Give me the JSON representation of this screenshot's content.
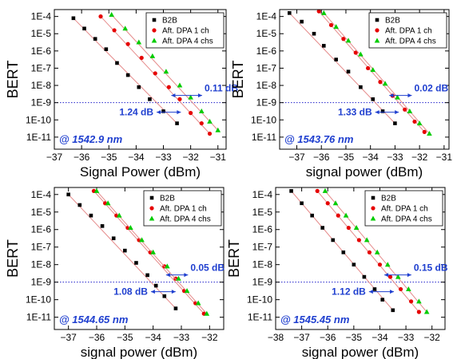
{
  "chart_data": [
    {
      "type": "scatter",
      "ylabel": "BERT",
      "xlabel": "Signal Power (dBm)",
      "wavelength_label": "@ 1542.9 nm",
      "xlim": [
        -37,
        -30.7
      ],
      "xticks": [
        -37,
        -36,
        -35,
        -34,
        -33,
        -32,
        -31
      ],
      "ylim_log10": [
        -11.7,
        -3.6
      ],
      "yticks": [
        "1E-4",
        "1E-5",
        "1E-6",
        "1E-7",
        "1E-8",
        "1E-9",
        "1E-10",
        "1E-11"
      ],
      "reference_level": "1E-9",
      "legend": [
        "B2B",
        "Aft. DPA 1 ch",
        "Aft. DPA 4 chs"
      ],
      "legend_position": "top-right",
      "annotations": [
        {
          "text": "0.11 dB",
          "between": [
            1,
            2
          ]
        },
        {
          "text": "1.24 dB",
          "between": [
            0,
            1
          ]
        }
      ],
      "series": [
        {
          "name": "B2B",
          "marker": "square",
          "color": "#000000",
          "points": [
            [
              -36.3,
              -4.1
            ],
            [
              -35.9,
              -4.7
            ],
            [
              -35.5,
              -5.3
            ],
            [
              -35.1,
              -5.9
            ],
            [
              -34.7,
              -6.7
            ],
            [
              -34.3,
              -7.4
            ],
            [
              -33.9,
              -8.1
            ],
            [
              -33.5,
              -8.8
            ],
            [
              -33.0,
              -9.5
            ],
            [
              -32.5,
              -10.2
            ]
          ],
          "fit": [
            [
              -36.3,
              -4.1
            ],
            [
              -32.5,
              -10.2
            ]
          ]
        },
        {
          "name": "Aft. DPA 1 ch",
          "marker": "circle",
          "color": "#e60000",
          "points": [
            [
              -35.3,
              -4.0
            ],
            [
              -34.8,
              -4.8
            ],
            [
              -34.3,
              -5.6
            ],
            [
              -33.8,
              -6.4
            ],
            [
              -33.3,
              -7.3
            ],
            [
              -32.8,
              -8.1
            ],
            [
              -32.4,
              -8.8
            ],
            [
              -32.0,
              -9.6
            ],
            [
              -31.6,
              -10.2
            ],
            [
              -31.3,
              -10.8
            ]
          ],
          "fit": [
            [
              -35.3,
              -4.0
            ],
            [
              -31.3,
              -10.8
            ]
          ]
        },
        {
          "name": "Aft. DPA 4 chs",
          "marker": "triangle",
          "color": "#00cc00",
          "points": [
            [
              -34.9,
              -3.9
            ],
            [
              -34.4,
              -4.7
            ],
            [
              -33.9,
              -5.5
            ],
            [
              -33.4,
              -6.3
            ],
            [
              -32.9,
              -7.2
            ],
            [
              -32.4,
              -8.0
            ],
            [
              -32.0,
              -8.7
            ],
            [
              -31.6,
              -9.5
            ],
            [
              -31.3,
              -10.1
            ],
            [
              -31.0,
              -10.6
            ]
          ],
          "fit": [
            [
              -34.9,
              -3.9
            ],
            [
              -31.0,
              -10.6
            ]
          ]
        }
      ]
    },
    {
      "type": "scatter",
      "ylabel": "BERT",
      "xlabel": "signal power (dBm)",
      "wavelength_label": "@ 1543.76 nm",
      "xlim": [
        -37.7,
        -30.8
      ],
      "xticks": [
        -37,
        -36,
        -35,
        -34,
        -33,
        -32,
        -31
      ],
      "ylim_log10": [
        -11.7,
        -3.6
      ],
      "yticks": [
        "1E-4",
        "1E-5",
        "1E-6",
        "1E-7",
        "1E-8",
        "1E-9",
        "1E-10",
        "1E-11"
      ],
      "reference_level": "1E-9",
      "legend": [
        "B2B",
        "Aft. DPA 1 ch",
        "Aft. DPA 4 chs"
      ],
      "legend_position": "top-right",
      "annotations": [
        {
          "text": "0.02 dB",
          "between": [
            1,
            2
          ]
        },
        {
          "text": "1.33 dB",
          "between": [
            0,
            1
          ]
        }
      ],
      "series": [
        {
          "name": "B2B",
          "marker": "square",
          "color": "#000000",
          "points": [
            [
              -37.3,
              -3.8
            ],
            [
              -36.8,
              -4.3
            ],
            [
              -36.3,
              -5.0
            ],
            [
              -35.9,
              -5.7
            ],
            [
              -35.4,
              -6.5
            ],
            [
              -34.9,
              -7.2
            ],
            [
              -34.4,
              -8.1
            ],
            [
              -33.9,
              -8.8
            ],
            [
              -33.5,
              -9.5
            ],
            [
              -33.0,
              -10.2
            ]
          ],
          "fit": [
            [
              -37.3,
              -3.8
            ],
            [
              -33.0,
              -10.2
            ]
          ]
        },
        {
          "name": "Aft. DPA 1 ch",
          "marker": "circle",
          "color": "#e60000",
          "points": [
            [
              -36.1,
              -3.7
            ],
            [
              -35.6,
              -4.5
            ],
            [
              -35.1,
              -5.3
            ],
            [
              -34.6,
              -6.1
            ],
            [
              -34.1,
              -7.0
            ],
            [
              -33.6,
              -7.8
            ],
            [
              -33.1,
              -8.6
            ],
            [
              -32.6,
              -9.4
            ],
            [
              -32.2,
              -10.1
            ],
            [
              -31.8,
              -10.7
            ]
          ],
          "fit": [
            [
              -36.1,
              -3.7
            ],
            [
              -31.8,
              -10.7
            ]
          ]
        },
        {
          "name": "Aft. DPA 4 chs",
          "marker": "triangle",
          "color": "#00cc00",
          "points": [
            [
              -35.9,
              -3.8
            ],
            [
              -35.4,
              -4.6
            ],
            [
              -34.9,
              -5.4
            ],
            [
              -34.4,
              -6.2
            ],
            [
              -33.9,
              -7.1
            ],
            [
              -33.4,
              -7.9
            ],
            [
              -32.9,
              -8.7
            ],
            [
              -32.4,
              -9.5
            ],
            [
              -32.0,
              -10.2
            ],
            [
              -31.6,
              -10.8
            ]
          ],
          "fit": [
            [
              -35.9,
              -3.8
            ],
            [
              -31.6,
              -10.8
            ]
          ]
        }
      ]
    },
    {
      "type": "scatter",
      "ylabel": "BERT",
      "xlabel": "signal power (dBm)",
      "wavelength_label": "@ 1544.65 nm",
      "xlim": [
        -37.5,
        -31.5
      ],
      "xticks": [
        -37,
        -36,
        -35,
        -34,
        -33,
        -32
      ],
      "ylim_log10": [
        -11.7,
        -3.6
      ],
      "yticks": [
        "1E-4",
        "1E-5",
        "1E-6",
        "1E-7",
        "1E-8",
        "1E-9",
        "1E-10",
        "1E-11"
      ],
      "reference_level": "1E-9",
      "legend": [
        "B2B",
        "Aft. DPA 1 ch",
        "Aft. DPA 4 chs"
      ],
      "legend_position": "top-right",
      "annotations": [
        {
          "text": "0.05 dB",
          "between": [
            1,
            2
          ]
        },
        {
          "text": "1.08 dB",
          "between": [
            0,
            1
          ]
        }
      ],
      "series": [
        {
          "name": "B2B",
          "marker": "square",
          "color": "#000000",
          "points": [
            [
              -37.0,
              -4.0
            ],
            [
              -36.6,
              -4.6
            ],
            [
              -36.2,
              -5.2
            ],
            [
              -35.8,
              -5.8
            ],
            [
              -35.4,
              -6.5
            ],
            [
              -35.0,
              -7.2
            ],
            [
              -34.6,
              -7.9
            ],
            [
              -34.2,
              -8.6
            ],
            [
              -33.9,
              -9.2
            ],
            [
              -33.6,
              -9.8
            ],
            [
              -33.2,
              -10.5
            ]
          ],
          "fit": [
            [
              -37.0,
              -4.0
            ],
            [
              -33.2,
              -10.5
            ]
          ]
        },
        {
          "name": "Aft. DPA 1 ch",
          "marker": "circle",
          "color": "#e60000",
          "points": [
            [
              -36.1,
              -3.8
            ],
            [
              -35.7,
              -4.5
            ],
            [
              -35.3,
              -5.2
            ],
            [
              -34.9,
              -5.9
            ],
            [
              -34.5,
              -6.6
            ],
            [
              -34.1,
              -7.3
            ],
            [
              -33.6,
              -8.1
            ],
            [
              -33.2,
              -8.8
            ],
            [
              -32.9,
              -9.5
            ],
            [
              -32.5,
              -10.2
            ],
            [
              -32.2,
              -10.8
            ]
          ],
          "fit": [
            [
              -36.1,
              -3.8
            ],
            [
              -32.2,
              -10.8
            ]
          ]
        },
        {
          "name": "Aft. DPA 4 chs",
          "marker": "triangle",
          "color": "#00cc00",
          "points": [
            [
              -36.0,
              -3.8
            ],
            [
              -35.6,
              -4.5
            ],
            [
              -35.2,
              -5.2
            ],
            [
              -34.8,
              -5.9
            ],
            [
              -34.4,
              -6.6
            ],
            [
              -34.0,
              -7.3
            ],
            [
              -33.5,
              -8.1
            ],
            [
              -33.1,
              -8.8
            ],
            [
              -32.8,
              -9.5
            ],
            [
              -32.4,
              -10.2
            ],
            [
              -32.1,
              -10.8
            ]
          ],
          "fit": [
            [
              -36.0,
              -3.8
            ],
            [
              -32.1,
              -10.8
            ]
          ]
        }
      ]
    },
    {
      "type": "scatter",
      "ylabel": "BERT",
      "xlabel": "signal power (dBm)",
      "wavelength_label": "@ 1545.45 nm",
      "xlim": [
        -38,
        -31.5
      ],
      "xticks": [
        -38,
        -37,
        -36,
        -35,
        -34,
        -33,
        -32
      ],
      "ylim_log10": [
        -11.7,
        -3.6
      ],
      "yticks": [
        "1E-4",
        "1E-5",
        "1E-6",
        "1E-7",
        "1E-8",
        "1E-9",
        "1E-10",
        "1E-11"
      ],
      "reference_level": "1E-9",
      "legend": [
        "B2B",
        "Aft. DPA 1 ch",
        "Aft. DPA 4 chs"
      ],
      "legend_position": "top-right",
      "annotations": [
        {
          "text": "0.15 dB",
          "between": [
            1,
            2
          ]
        },
        {
          "text": "1.12 dB",
          "between": [
            0,
            1
          ]
        }
      ],
      "series": [
        {
          "name": "B2B",
          "marker": "square",
          "color": "#000000",
          "points": [
            [
              -37.4,
              -3.8
            ],
            [
              -37.0,
              -4.5
            ],
            [
              -36.6,
              -5.2
            ],
            [
              -36.2,
              -5.9
            ],
            [
              -35.8,
              -6.6
            ],
            [
              -35.4,
              -7.3
            ],
            [
              -35.0,
              -8.0
            ],
            [
              -34.6,
              -8.7
            ],
            [
              -34.2,
              -9.4
            ],
            [
              -33.9,
              -10.0
            ],
            [
              -33.5,
              -10.6
            ]
          ],
          "fit": [
            [
              -37.4,
              -3.8
            ],
            [
              -33.5,
              -10.6
            ]
          ]
        },
        {
          "name": "Aft. DPA 1 ch",
          "marker": "circle",
          "color": "#e60000",
          "points": [
            [
              -36.4,
              -3.8
            ],
            [
              -36.0,
              -4.5
            ],
            [
              -35.6,
              -5.2
            ],
            [
              -35.2,
              -5.9
            ],
            [
              -34.8,
              -6.6
            ],
            [
              -34.4,
              -7.3
            ],
            [
              -34.0,
              -8.0
            ],
            [
              -33.6,
              -8.7
            ],
            [
              -33.2,
              -9.4
            ],
            [
              -32.8,
              -10.1
            ],
            [
              -32.5,
              -10.7
            ]
          ],
          "fit": [
            [
              -36.4,
              -3.8
            ],
            [
              -32.5,
              -10.7
            ]
          ]
        },
        {
          "name": "Aft. DPA 4 chs",
          "marker": "triangle",
          "color": "#00cc00",
          "points": [
            [
              -36.1,
              -3.8
            ],
            [
              -35.7,
              -4.5
            ],
            [
              -35.3,
              -5.2
            ],
            [
              -34.9,
              -5.9
            ],
            [
              -34.5,
              -6.6
            ],
            [
              -34.1,
              -7.3
            ],
            [
              -33.7,
              -8.0
            ],
            [
              -33.3,
              -8.7
            ],
            [
              -32.9,
              -9.4
            ],
            [
              -32.5,
              -10.1
            ],
            [
              -32.2,
              -10.7
            ]
          ],
          "fit": [
            [
              -36.1,
              -3.8
            ],
            [
              -32.2,
              -10.7
            ]
          ]
        }
      ]
    }
  ]
}
